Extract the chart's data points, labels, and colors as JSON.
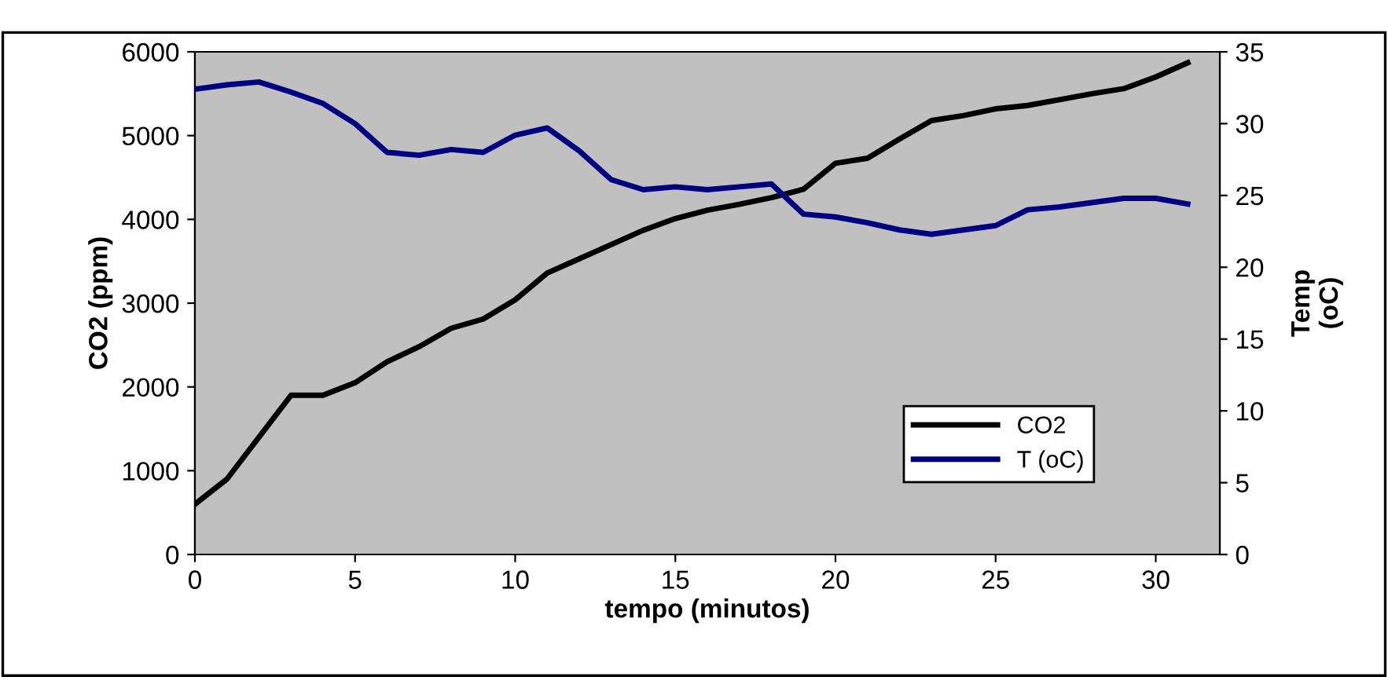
{
  "chart_data": {
    "type": "line",
    "xlabel": "tempo (minutos)",
    "ylabel": "CO2 (ppm)",
    "y2label": "Temp\n(oC)",
    "x": [
      0,
      1,
      2,
      3,
      4,
      5,
      6,
      7,
      8,
      9,
      10,
      11,
      12,
      13,
      14,
      15,
      16,
      17,
      18,
      19,
      20,
      21,
      22,
      23,
      24,
      25,
      26,
      27,
      28,
      29,
      30,
      31
    ],
    "series": [
      {
        "name": "CO2",
        "color": "#000000",
        "values": [
          600,
          900,
          1400,
          1900,
          1900,
          2050,
          2300,
          2480,
          2700,
          2810,
          3040,
          3360,
          3530,
          3700,
          3870,
          4010,
          4110,
          4180,
          4260,
          4360,
          4670,
          4730,
          4960,
          5180,
          5240,
          5320,
          5360,
          5430,
          5500,
          5560,
          5700,
          5870
        ]
      },
      {
        "name": "T (oC)",
        "color": "#000080",
        "axis": "y2",
        "values": [
          32.4,
          32.7,
          32.9,
          32.2,
          31.4,
          30.0,
          28.0,
          27.8,
          28.2,
          28.0,
          29.2,
          29.7,
          28.1,
          26.1,
          25.4,
          25.6,
          25.4,
          25.6,
          25.8,
          23.7,
          23.5,
          23.1,
          22.6,
          22.3,
          22.6,
          22.9,
          24.0,
          24.2,
          24.5,
          24.8,
          24.8,
          24.4
        ]
      }
    ],
    "xlim": [
      0,
      32
    ],
    "xticks": [
      0,
      5,
      10,
      15,
      20,
      25,
      30
    ],
    "ylim": [
      0,
      6000
    ],
    "yticks": [
      0,
      1000,
      2000,
      3000,
      4000,
      5000,
      6000
    ],
    "y2lim": [
      0,
      35
    ],
    "y2ticks": [
      0,
      5,
      10,
      15,
      20,
      25,
      30,
      35
    ],
    "legend": "bottom right",
    "grid": false
  }
}
